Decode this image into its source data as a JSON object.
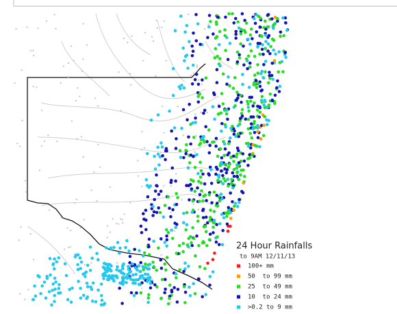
{
  "map": {
    "title": "24 Hour Rainfalls",
    "subtitle": "to 9AM 12/11/13",
    "legend": [
      {
        "label": "100+ mm",
        "color": "#ff1a1a"
      },
      {
        "label": "50  to 99 mm",
        "color": "#ff9a00"
      },
      {
        "label": "25  to 49 mm",
        "color": "#22dd22"
      },
      {
        "label": "10  to 24 mm",
        "color": "#1414b4"
      },
      {
        "label": ">0.2 to 9 mm",
        "color": "#22c8ee"
      }
    ]
  }
}
